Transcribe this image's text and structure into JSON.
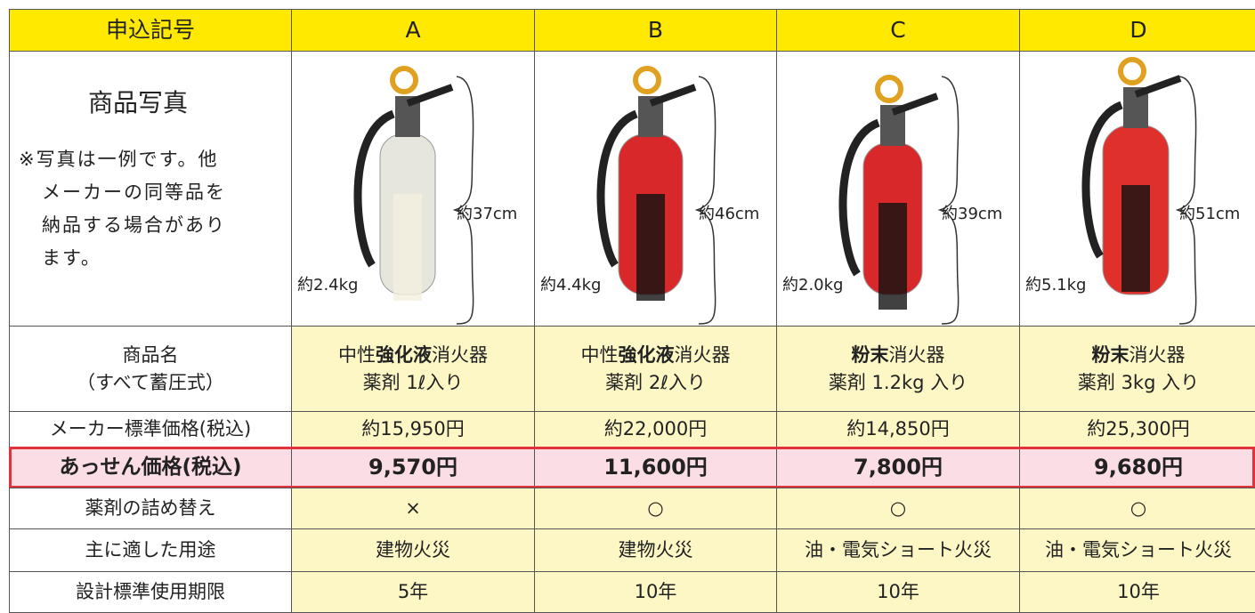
{
  "header": [
    "申込記号",
    "A",
    "B",
    "C",
    "D"
  ],
  "photo": {
    "label": "商品写真",
    "note": [
      "※写真は一例です。他",
      "メーカーの同等品を",
      "納品する場合があり",
      "ます。"
    ],
    "items": [
      {
        "height": "約37cm",
        "weight": "約2.4kg"
      },
      {
        "height": "約46cm",
        "weight": "約4.4kg"
      },
      {
        "height": "約39cm",
        "weight": "約2.0kg"
      },
      {
        "height": "約51cm",
        "weight": "約5.1kg"
      }
    ]
  },
  "name_row": {
    "label": [
      "商品名",
      "（すべて蓄圧式）"
    ],
    "items": [
      {
        "line1": [
          {
            "text": "中性",
            "bold": false
          },
          {
            "text": "強化液",
            "bold": true
          },
          {
            "text": "消火器",
            "bold": false
          }
        ],
        "line2": "薬剤 1ℓ入り"
      },
      {
        "line1": [
          {
            "text": "中性",
            "bold": false
          },
          {
            "text": "強化液",
            "bold": true
          },
          {
            "text": "消火器",
            "bold": false
          }
        ],
        "line2": "薬剤 2ℓ入り"
      },
      {
        "line1": [
          {
            "text": "粉末",
            "bold": true
          },
          {
            "text": "消火器",
            "bold": false
          }
        ],
        "line2": "薬剤 1.2kg 入り"
      },
      {
        "line1": [
          {
            "text": "粉末",
            "bold": true
          },
          {
            "text": "消火器",
            "bold": false
          }
        ],
        "line2": "薬剤 3kg 入り"
      }
    ]
  },
  "rows": [
    {
      "label": "メーカー標準価格(税込)",
      "values": [
        "約15,950円",
        "約22,000円",
        "約14,850円",
        "約25,300円"
      ]
    },
    {
      "label": "あっせん価格(税込)",
      "values": [
        "9,570円",
        "11,600円",
        "7,800円",
        "9,680円"
      ],
      "highlight": true
    },
    {
      "label": "薬剤の詰め替え",
      "values": [
        "×",
        "○",
        "○",
        "○"
      ]
    },
    {
      "label": "主に適した用途",
      "values": [
        "建物火災",
        "建物火災",
        "油・電気ショート火災",
        "油・電気ショート火災"
      ]
    },
    {
      "label": "設計標準使用期限",
      "values": [
        "5年",
        "10年",
        "10年",
        "10年"
      ]
    }
  ]
}
